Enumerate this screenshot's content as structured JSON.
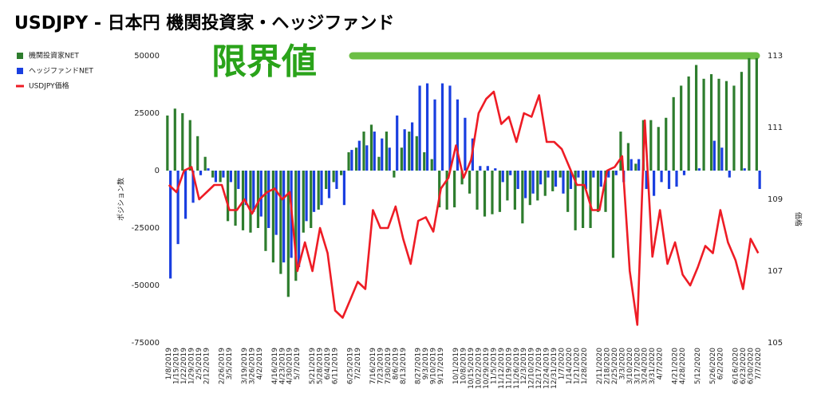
{
  "chart_data": {
    "type": "bar",
    "title": "USDJPY - 日本円 機関投資家・ヘッジファンド",
    "annotation": "限界値",
    "limit_value": 50000,
    "limit_color": "#6cbf45",
    "ylabel": "ポジション数",
    "y2label": "価格",
    "categories": [
      "1/8/2019",
      "1/15/2019",
      "1/22/2019",
      "1/29/2019",
      "2/5/2019",
      "2/12/2019",
      null,
      "2/26/2019",
      "3/5/2019",
      null,
      "3/19/2019",
      "3/26/2019",
      "4/2/2019",
      null,
      "4/16/2019",
      "4/23/2019",
      "4/30/2019",
      "5/7/2019",
      null,
      "5/21/2019",
      "5/28/2019",
      "6/4/2019",
      "6/11/2019",
      null,
      "6/25/2019",
      "7/2/2019",
      null,
      "7/16/2019",
      "7/23/2019",
      "7/30/2019",
      "8/6/2019",
      "8/13/2019",
      null,
      "8/27/2019",
      "9/3/2019",
      "9/10/2019",
      "9/17/2019",
      null,
      "10/1/2019",
      "10/8/2019",
      "10/15/2019",
      "10/22/2019",
      "10/29/2019",
      "11/5/2019",
      "11/12/2019",
      "11/19/2019",
      "11/26/2019",
      "12/3/2019",
      "12/10/2019",
      "12/17/2019",
      "12/24/2019",
      "12/31/2019",
      "1/7/2020",
      "1/14/2020",
      "1/21/2020",
      "1/28/2020",
      null,
      "2/11/2020",
      "2/18/2020",
      "2/25/2020",
      "3/3/2020",
      "3/10/2020",
      "3/17/2020",
      "3/24/2020",
      "3/31/2020",
      "4/7/2020",
      null,
      "4/21/2020",
      "4/28/2020",
      null,
      "5/12/2020",
      null,
      "5/26/2020",
      "6/2/2020",
      null,
      "6/16/2020",
      "6/23/2020",
      "6/30/2020",
      "7/7/2020"
    ],
    "series": [
      {
        "name": "機関投資家NET",
        "color": "#2e7d2e",
        "type": "bar",
        "values": [
          24000,
          27000,
          25000,
          22000,
          15000,
          6000,
          -3000,
          -5000,
          -22000,
          -24000,
          -26000,
          -27000,
          -25000,
          -35000,
          -40000,
          -45000,
          -55000,
          -48000,
          -27000,
          -25000,
          -17000,
          -8000,
          -5000,
          -2000,
          8000,
          10000,
          17000,
          20000,
          6000,
          17000,
          -3000,
          10000,
          17000,
          15000,
          8000,
          5000,
          -16000,
          -17000,
          -16000,
          -6000,
          -10000,
          -17000,
          -20000,
          -19000,
          -18000,
          -13000,
          -17000,
          -23000,
          -15000,
          -13000,
          -11000,
          -9000,
          -3000,
          -18000,
          -26000,
          -25000,
          -25000,
          -18000,
          -18000,
          -38000,
          17000,
          12000,
          3000,
          22000,
          22000,
          19000,
          23000,
          32000,
          37000,
          41000,
          46000,
          40000,
          42000,
          40000,
          39000,
          37000,
          43000,
          49000,
          49000
        ]
      },
      {
        "name": "ヘッジファンドNET",
        "color": "#1a3fe0",
        "type": "bar",
        "values": [
          -47000,
          -32000,
          -21000,
          -14000,
          -2000,
          1000,
          -5000,
          -3000,
          -5000,
          -8000,
          -15000,
          -18000,
          -20000,
          -25000,
          -28000,
          -40000,
          -38000,
          -42000,
          -22000,
          -18000,
          -15000,
          -12000,
          -8000,
          -15000,
          9000,
          13000,
          11000,
          17000,
          14000,
          10000,
          24000,
          18000,
          21000,
          37000,
          38000,
          31000,
          38000,
          37000,
          31000,
          23000,
          14000,
          2000,
          2000,
          1000,
          -5000,
          -2000,
          -8000,
          -12000,
          -10000,
          -6000,
          -3000,
          -7000,
          -10000,
          -8000,
          -3000,
          -8000,
          -3000,
          -7000,
          -3000,
          -2000,
          -5000,
          5000,
          5000,
          -8000,
          -11000,
          -5000,
          -8000,
          -7000,
          -2000,
          0,
          1000,
          0,
          13000,
          10000,
          -3000,
          0,
          1000,
          0,
          -8000
        ]
      },
      {
        "name": "USDJPY価格",
        "color": "#ee1c25",
        "type": "line",
        "axis": "y2",
        "values": [
          109.4,
          109.2,
          109.8,
          109.9,
          109.0,
          109.2,
          109.4,
          109.4,
          108.7,
          108.7,
          109.0,
          108.6,
          109.0,
          109.2,
          109.3,
          109.0,
          109.2,
          107.0,
          107.8,
          107.0,
          108.2,
          107.5,
          105.9,
          105.7,
          106.2,
          106.7,
          106.5,
          108.7,
          108.2,
          108.2,
          108.8,
          107.9,
          107.2,
          108.4,
          108.5,
          108.1,
          109.3,
          109.6,
          110.5,
          109.6,
          110.1,
          111.4,
          111.8,
          112.0,
          111.1,
          111.3,
          110.6,
          111.4,
          111.3,
          111.9,
          110.6,
          110.6,
          110.4,
          109.9,
          109.4,
          109.4,
          108.7,
          108.7,
          109.8,
          109.9,
          110.2,
          107.0,
          105.5,
          111.2,
          107.4,
          108.7,
          107.2,
          107.8,
          106.9,
          106.6,
          107.1,
          107.7,
          107.5,
          108.7,
          107.8,
          107.3,
          106.5,
          107.9,
          107.5
        ]
      }
    ],
    "ylim": [
      -75000,
      50000
    ],
    "yticks": [
      -75000,
      -50000,
      -25000,
      0,
      25000,
      50000
    ],
    "y2lim": [
      105,
      113
    ],
    "y2ticks": [
      105,
      107,
      109,
      111,
      113
    ],
    "grid": false
  }
}
